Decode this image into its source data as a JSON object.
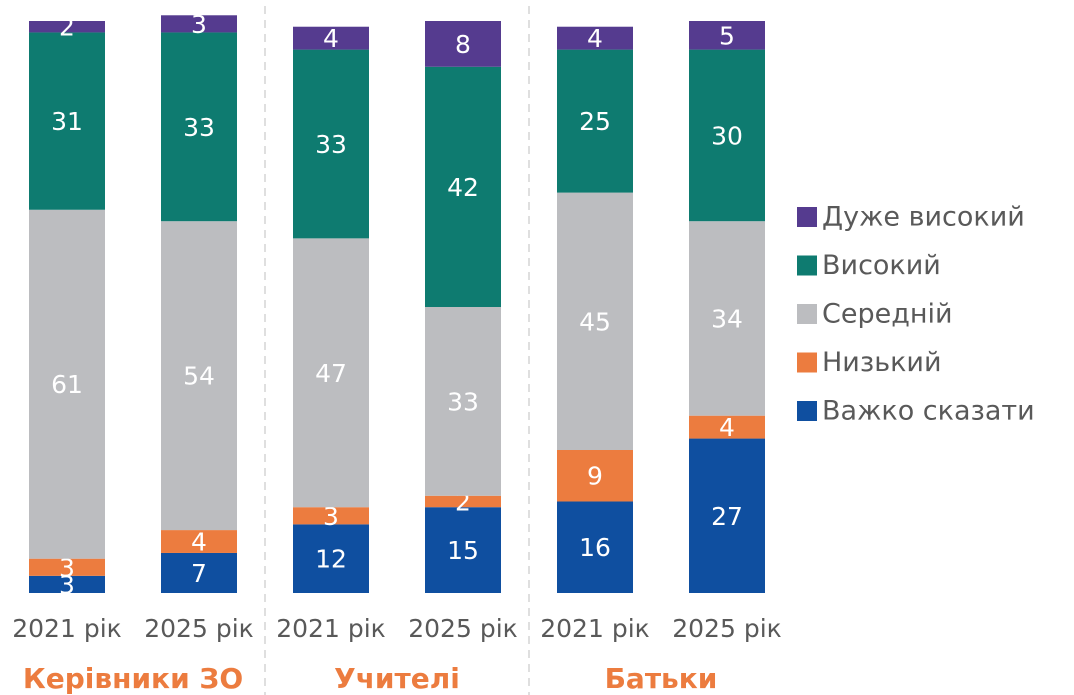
{
  "chart_data": {
    "type": "stacked_bar",
    "categories": [
      "2021 рік",
      "2025 рік",
      "2021 рік",
      "2025 рік",
      "2021 рік",
      "2025 рік"
    ],
    "groups": [
      "Керівники ЗО",
      "Учителі",
      "Батьки"
    ],
    "ylim": [
      0,
      100
    ],
    "series": [
      {
        "name": "Важко сказати",
        "color": "#0f4fa0",
        "values": [
          3,
          7,
          12,
          15,
          16,
          27
        ]
      },
      {
        "name": "Низький",
        "color": "#ec7c3f",
        "values": [
          3,
          4,
          3,
          2,
          9,
          4
        ]
      },
      {
        "name": "Середній",
        "color": "#bcbdc0",
        "values": [
          61,
          54,
          47,
          33,
          45,
          34
        ]
      },
      {
        "name": "Високий",
        "color": "#0e7b70",
        "values": [
          31,
          33,
          33,
          42,
          25,
          30
        ]
      },
      {
        "name": "Дуже високий",
        "color": "#553b8f",
        "values": [
          2,
          3,
          4,
          8,
          4,
          5
        ]
      }
    ],
    "legend": "right"
  }
}
